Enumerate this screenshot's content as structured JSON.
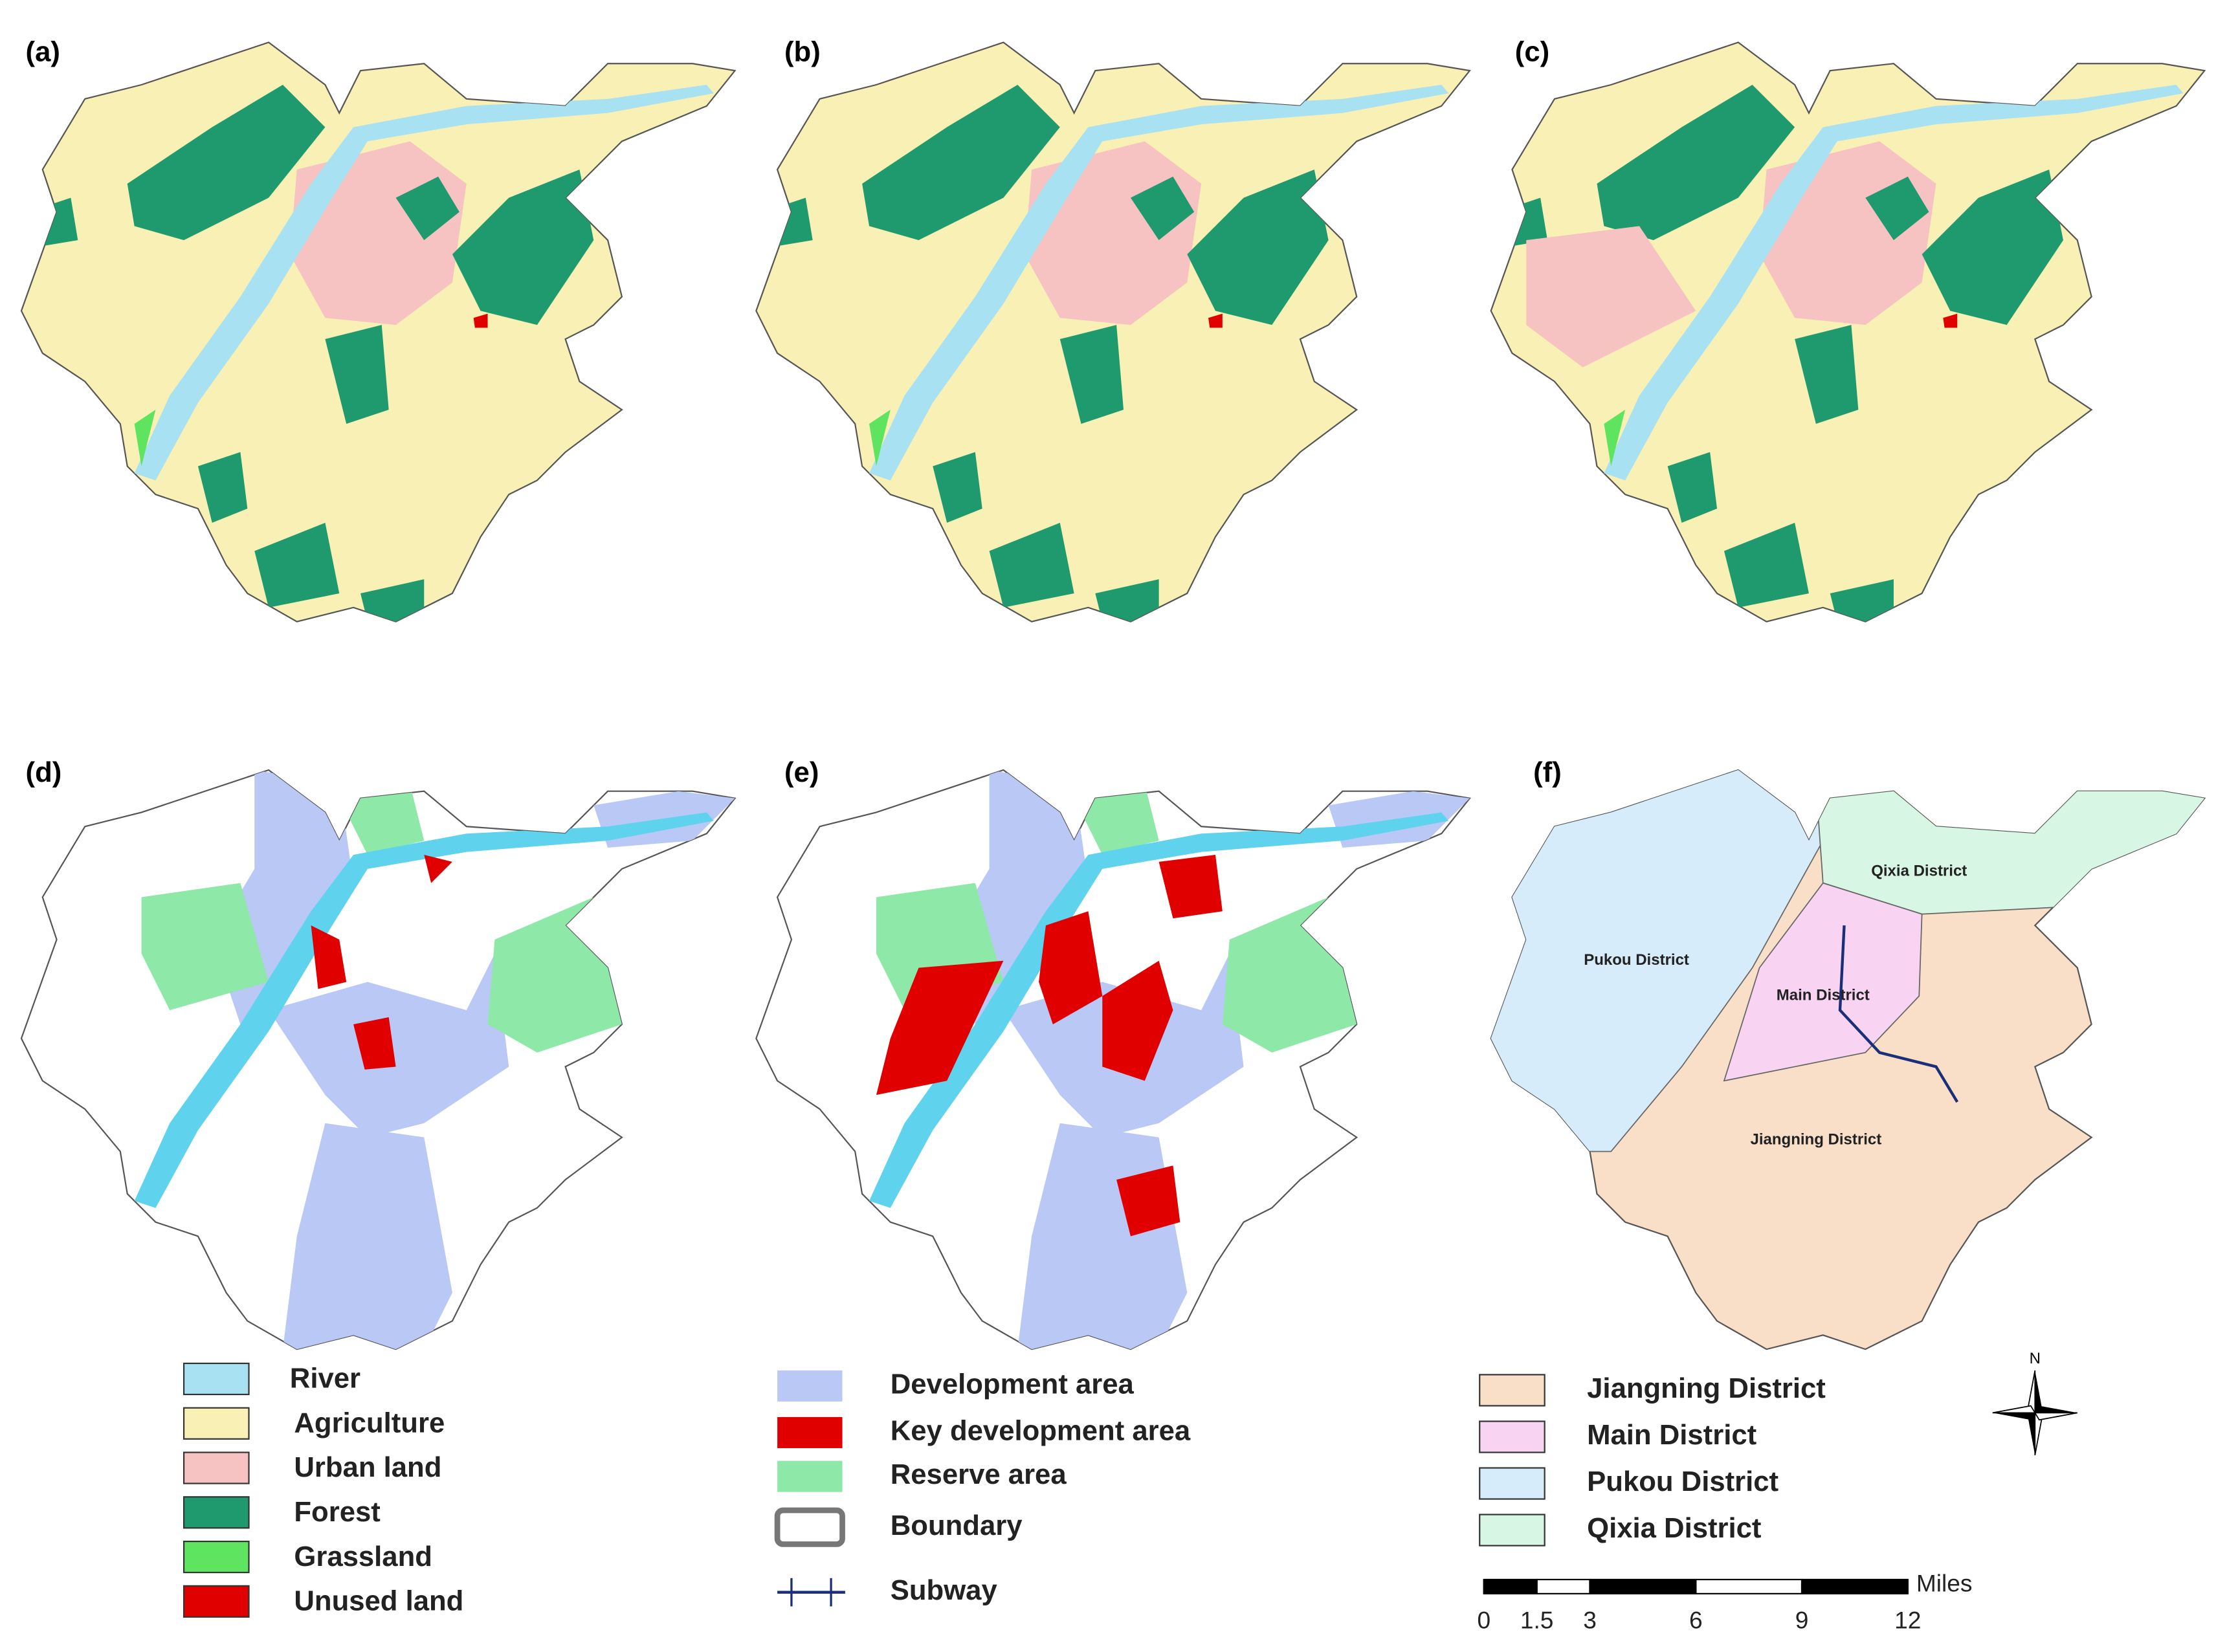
{
  "panels": [
    "(a)",
    "(b)",
    "(c)",
    "(d)",
    "(e)",
    "(f)"
  ],
  "legend_land_use": [
    "River",
    "Agriculture",
    "Urban land",
    "Forest",
    "Grassland",
    "Unused land"
  ],
  "legend_zones": [
    "Development area",
    "Key development area",
    "Reserve area",
    "Boundary",
    "Subway"
  ],
  "legend_districts": [
    "Jiangning District",
    "Main District",
    "Pukou District",
    "Qixia District"
  ],
  "district_labels": [
    "Qixia District",
    "Pukou District",
    "Main District",
    "Jiangning District"
  ],
  "north": "N",
  "scale_bar": {
    "unit": "Miles",
    "ticks": [
      0,
      1.5,
      3,
      6,
      9,
      12
    ]
  }
}
